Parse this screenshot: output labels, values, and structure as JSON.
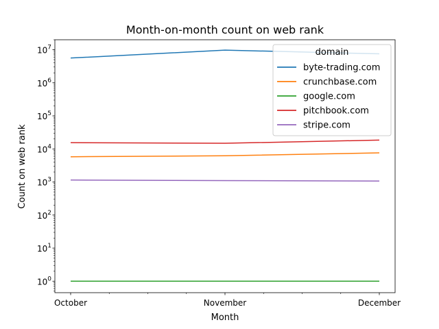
{
  "chart_data": {
    "type": "line",
    "title": "Month-on-month count on web rank",
    "xlabel": "Month",
    "ylabel": "Count on web rank",
    "x": [
      "October",
      "November",
      "December"
    ],
    "yscale": "log",
    "ylim": [
      0.45,
      20000000
    ],
    "y_ticks": [
      {
        "value": 1,
        "base": "10",
        "exp": "0"
      },
      {
        "value": 10,
        "base": "10",
        "exp": "1"
      },
      {
        "value": 100,
        "base": "10",
        "exp": "2"
      },
      {
        "value": 1000,
        "base": "10",
        "exp": "3"
      },
      {
        "value": 10000,
        "base": "10",
        "exp": "4"
      },
      {
        "value": 100000,
        "base": "10",
        "exp": "5"
      },
      {
        "value": 1000000,
        "base": "10",
        "exp": "6"
      },
      {
        "value": 10000000,
        "base": "10",
        "exp": "7"
      }
    ],
    "grid": false,
    "legend": {
      "title": "domain",
      "placement": "top-right"
    },
    "series": [
      {
        "name": "byte-trading.com",
        "color": "#1f77b4",
        "values": [
          5600000,
          9700000,
          7500000
        ]
      },
      {
        "name": "crunchbase.com",
        "color": "#ff7f0e",
        "values": [
          5800,
          6200,
          7600
        ]
      },
      {
        "name": "google.com",
        "color": "#2ca02c",
        "values": [
          1,
          1,
          1
        ]
      },
      {
        "name": "pitchbook.com",
        "color": "#d62728",
        "values": [
          15500,
          14800,
          18500
        ]
      },
      {
        "name": "stripe.com",
        "color": "#9467bd",
        "values": [
          1150,
          1100,
          1070
        ]
      }
    ]
  }
}
